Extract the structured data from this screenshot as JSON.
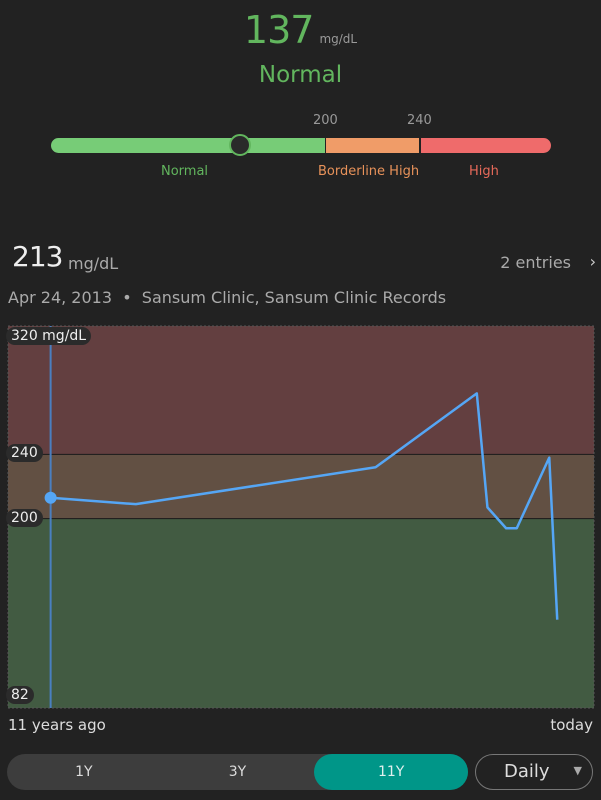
{
  "current": {
    "value": "137",
    "unit": "mg/dL",
    "status": "Normal",
    "status_color": "#62b65e"
  },
  "range_bar": {
    "ticks": [
      "200",
      "240"
    ],
    "ranges": [
      {
        "label": "Normal",
        "color": "#77cc77",
        "label_color": "#62b65e"
      },
      {
        "label": "Borderline High",
        "color": "#f09c68",
        "label_color": "#e8925a"
      },
      {
        "label": "High",
        "color": "#ef6b6b",
        "label_color": "#e76a5a"
      }
    ],
    "marker_value": 137
  },
  "selected": {
    "value": "213",
    "unit": "mg/dL",
    "entries": "2 entries",
    "date": "Apr 24, 2013",
    "separator": "•",
    "source": "Sansum Clinic, Sansum Clinic Records"
  },
  "chart_data": {
    "type": "line",
    "y_labels": [
      "320 mg/dL",
      "240",
      "200",
      "82"
    ],
    "ylim": [
      82,
      320
    ],
    "x_labels": [
      "11 years ago",
      "today"
    ],
    "x_unit": "years ago",
    "xlim": [
      11,
      0
    ],
    "bands": [
      {
        "from": 240,
        "to": 320,
        "color": "#633f40"
      },
      {
        "from": 200,
        "to": 240,
        "color": "#625043"
      },
      {
        "from": 82,
        "to": 200,
        "color": "#425b42"
      }
    ],
    "series": [
      {
        "color": "#55a6f5",
        "points": [
          {
            "x": 10.2,
            "y": 213
          },
          {
            "x": 8.6,
            "y": 209
          },
          {
            "x": 4.1,
            "y": 232
          },
          {
            "x": 2.2,
            "y": 278
          },
          {
            "x": 2.0,
            "y": 207
          },
          {
            "x": 1.65,
            "y": 194
          },
          {
            "x": 1.45,
            "y": 194
          },
          {
            "x": 0.84,
            "y": 238
          },
          {
            "x": 0.69,
            "y": 137
          }
        ]
      }
    ],
    "selected_index": 0
  },
  "controls": {
    "ranges": [
      "1Y",
      "3Y",
      "11Y"
    ],
    "active": "11Y",
    "interval": "Daily"
  }
}
